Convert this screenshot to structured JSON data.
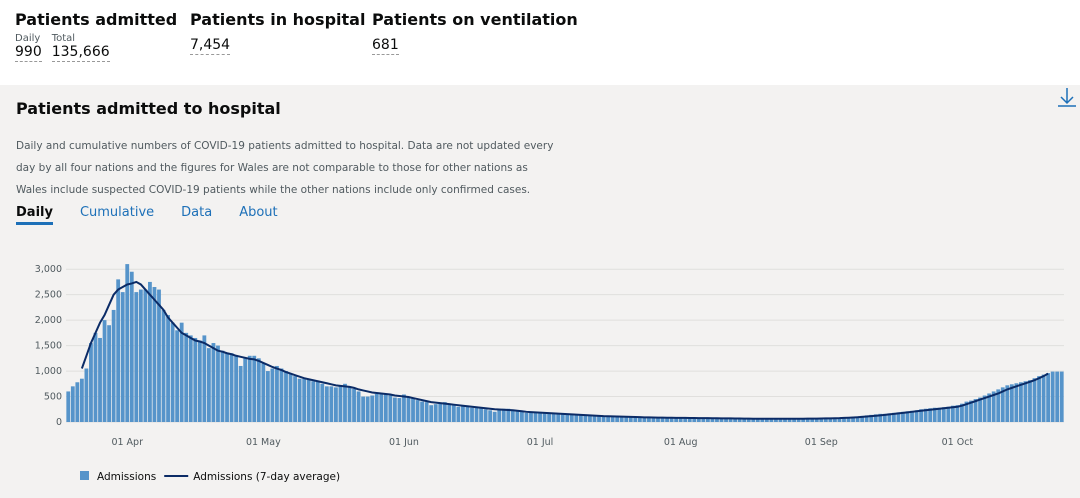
{
  "headlines": [
    {
      "title": "Patients admitted",
      "items": [
        {
          "label": "Daily",
          "value": "990"
        },
        {
          "label": "Total",
          "value": "135,666"
        }
      ]
    },
    {
      "title": "Patients in hospital",
      "items": [
        {
          "value": "7,454"
        }
      ]
    },
    {
      "title": "Patients on ventilation",
      "items": [
        {
          "value": "681"
        }
      ]
    }
  ],
  "card": {
    "title": "Patients admitted to hospital",
    "description": "Daily and cumulative numbers of COVID-19 patients admitted to hospital. Data are not updated every day by all four nations and the figures for Wales are not comparable to those for other nations as Wales include suspected COVID-19 patients while the other nations include only confirmed cases.",
    "tabs": [
      "Daily",
      "Cumulative",
      "Data",
      "About"
    ]
  },
  "chart_data": {
    "type": "bar",
    "grid": true,
    "ylim": [
      0,
      3200
    ],
    "yticks": [
      0,
      500,
      {
        "value": 1000,
        "label": "1,000"
      },
      {
        "value": 1500,
        "label": "1,500"
      },
      {
        "value": 2000,
        "label": "2,000"
      },
      {
        "value": 2500,
        "label": "2,500"
      },
      {
        "value": 3000,
        "label": "3,000"
      }
    ],
    "categories": [
      null,
      null,
      null,
      null,
      null,
      null,
      null,
      null,
      null,
      null,
      null,
      null,
      null,
      "01 Apr",
      null,
      null,
      null,
      null,
      null,
      null,
      null,
      null,
      null,
      null,
      null,
      null,
      null,
      null,
      null,
      null,
      null,
      null,
      null,
      null,
      null,
      null,
      null,
      null,
      null,
      null,
      null,
      null,
      null,
      "01 May",
      null,
      null,
      null,
      null,
      null,
      null,
      null,
      null,
      null,
      null,
      null,
      null,
      null,
      null,
      null,
      null,
      null,
      null,
      null,
      null,
      null,
      null,
      null,
      null,
      null,
      null,
      null,
      null,
      null,
      null,
      "01 Jun",
      null,
      null,
      null,
      null,
      null,
      null,
      null,
      null,
      null,
      null,
      null,
      null,
      null,
      null,
      null,
      null,
      null,
      null,
      null,
      null,
      null,
      null,
      null,
      null,
      null,
      null,
      null,
      null,
      null,
      "01 Jul",
      null,
      null,
      null,
      null,
      null,
      null,
      null,
      null,
      null,
      null,
      null,
      null,
      null,
      null,
      null,
      null,
      null,
      null,
      null,
      null,
      null,
      null,
      null,
      null,
      null,
      null,
      null,
      null,
      null,
      null,
      "01 Aug",
      null,
      null,
      null,
      null,
      null,
      null,
      null,
      null,
      null,
      null,
      null,
      null,
      null,
      null,
      null,
      null,
      null,
      null,
      null,
      null,
      null,
      null,
      null,
      null,
      null,
      null,
      null,
      null,
      null,
      null,
      "01 Sep",
      null,
      null,
      null,
      null,
      null,
      null,
      null,
      null,
      null,
      null,
      null,
      null,
      null,
      null,
      null,
      null,
      null,
      null,
      null,
      null,
      null,
      null,
      null,
      null,
      null,
      null,
      null,
      null,
      null,
      "01 Oct",
      null,
      null,
      null,
      null,
      null,
      null,
      null,
      null,
      null,
      null,
      null,
      null,
      null,
      null,
      null,
      null,
      null,
      null,
      null,
      null,
      null,
      null,
      null
    ],
    "series": [
      {
        "name": "Admissions",
        "color": "#5694ca",
        "values": [
          600,
          700,
          780,
          850,
          1050,
          1550,
          1750,
          1650,
          2000,
          1900,
          2200,
          2800,
          2550,
          3100,
          2950,
          2550,
          2600,
          2600,
          2750,
          2650,
          2600,
          2200,
          2100,
          1950,
          1800,
          1950,
          1750,
          1700,
          1650,
          1600,
          1700,
          1450,
          1550,
          1500,
          1400,
          1350,
          1350,
          1300,
          1100,
          1250,
          1300,
          1300,
          1250,
          1150,
          1000,
          1050,
          1100,
          1050,
          1000,
          950,
          900,
          850,
          850,
          850,
          800,
          800,
          750,
          700,
          700,
          680,
          700,
          750,
          700,
          650,
          600,
          500,
          500,
          520,
          550,
          560,
          550,
          520,
          480,
          470,
          540,
          500,
          470,
          430,
          400,
          390,
          330,
          350,
          380,
          390,
          350,
          330,
          300,
          310,
          300,
          280,
          300,
          270,
          250,
          230,
          200,
          250,
          260,
          260,
          230,
          220,
          200,
          180,
          190,
          180,
          180,
          170,
          170,
          160,
          150,
          150,
          150,
          140,
          140,
          130,
          120,
          120,
          120,
          110,
          110,
          110,
          100,
          100,
          100,
          100,
          90,
          90,
          90,
          90,
          90,
          80,
          80,
          80,
          80,
          80,
          80,
          80,
          80,
          80,
          70,
          70,
          70,
          70,
          70,
          70,
          70,
          70,
          70,
          70,
          60,
          60,
          60,
          60,
          60,
          60,
          60,
          60,
          60,
          60,
          60,
          60,
          60,
          60,
          60,
          60,
          70,
          70,
          70,
          80,
          80,
          80,
          80,
          90,
          90,
          100,
          110,
          120,
          130,
          140,
          150,
          160,
          160,
          170,
          180,
          190,
          200,
          210,
          220,
          230,
          250,
          260,
          270,
          280,
          280,
          290,
          300,
          320,
          330,
          360,
          400,
          420,
          450,
          480,
          520,
          560,
          600,
          640,
          680,
          720,
          740,
          760,
          780,
          800,
          820,
          860,
          900,
          930,
          960,
          990,
          990,
          990
        ]
      },
      {
        "name": "Admissions (7-day average)",
        "color": "#0b2b66",
        "values": [
          null,
          null,
          null,
          1050,
          1300,
          1550,
          1750,
          1950,
          2100,
          2300,
          2500,
          2600,
          2650,
          2700,
          2720,
          2750,
          2700,
          2600,
          2500,
          2400,
          2300,
          2200,
          2050,
          1950,
          1850,
          1750,
          1700,
          1650,
          1600,
          1580,
          1550,
          1500,
          1450,
          1400,
          1380,
          1350,
          1330,
          1300,
          1280,
          1260,
          1240,
          1230,
          1200,
          1160,
          1120,
          1080,
          1050,
          1020,
          980,
          950,
          920,
          890,
          860,
          840,
          820,
          800,
          780,
          760,
          740,
          720,
          710,
          700,
          690,
          670,
          640,
          620,
          600,
          580,
          570,
          560,
          550,
          540,
          520,
          510,
          500,
          490,
          470,
          450,
          430,
          410,
          390,
          380,
          370,
          360,
          350,
          340,
          330,
          320,
          310,
          300,
          290,
          280,
          270,
          260,
          250,
          245,
          240,
          235,
          230,
          220,
          210,
          200,
          195,
          190,
          185,
          180,
          175,
          170,
          165,
          160,
          155,
          150,
          145,
          140,
          135,
          130,
          125,
          120,
          115,
          112,
          110,
          108,
          105,
          102,
          100,
          98,
          95,
          92,
          90,
          88,
          86,
          85,
          84,
          83,
          82,
          81,
          80,
          79,
          78,
          77,
          76,
          75,
          74,
          73,
          72,
          71,
          70,
          69,
          68,
          67,
          66,
          65,
          64,
          64,
          64,
          64,
          64,
          64,
          64,
          64,
          64,
          65,
          65,
          66,
          66,
          67,
          68,
          70,
          72,
          74,
          76,
          80,
          84,
          88,
          93,
          100,
          108,
          115,
          122,
          130,
          140,
          150,
          160,
          170,
          180,
          190,
          200,
          210,
          220,
          230,
          240,
          250,
          260,
          270,
          280,
          290,
          300,
          320,
          350,
          380,
          410,
          440,
          470,
          500,
          530,
          560,
          600,
          640,
          670,
          700,
          730,
          760,
          790,
          820,
          860,
          900,
          950,
          null,
          null,
          null
        ]
      }
    ]
  }
}
